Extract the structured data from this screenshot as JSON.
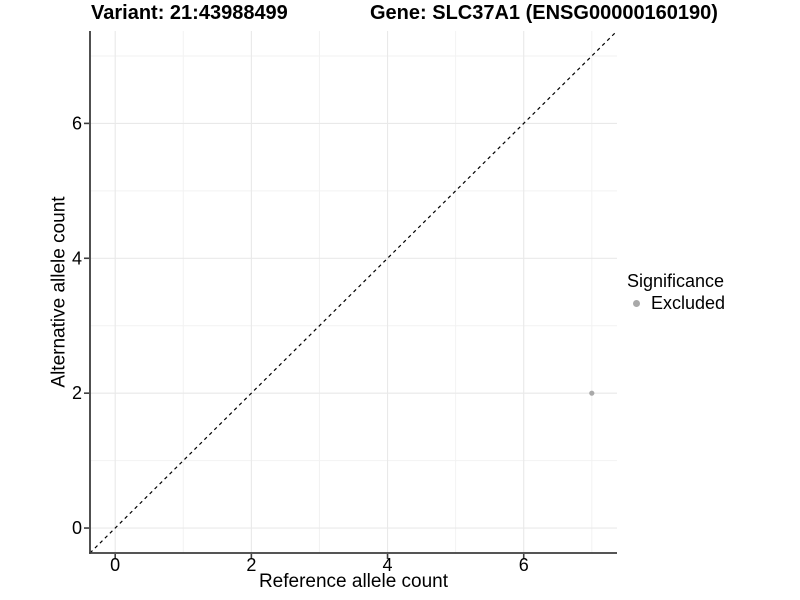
{
  "header": {
    "variant_title": "Variant: 21:43988499",
    "gene_title": "Gene: SLC37A1 (ENSG00000160190)"
  },
  "legend": {
    "title": "Significance",
    "items": [
      {
        "label": "Excluded",
        "color": "#a9a9a9",
        "marker": "circle"
      }
    ]
  },
  "colors": {
    "background": "#ffffff",
    "text": "#000000",
    "axis_line": "#3d3d3d",
    "grid_major": "#e9e9e9",
    "grid_minor": "#f2f2f2",
    "reference_line": "#000000",
    "point_excluded": "#a9a9a9"
  },
  "chart_data": {
    "type": "scatter",
    "title_left": "Variant: 21:43988499",
    "title_right": "Gene: SLC37A1 (ENSG00000160190)",
    "xlabel": "Reference allele count",
    "ylabel": "Alternative allele count",
    "xlim": [
      -0.37,
      7.37
    ],
    "ylim": [
      -0.37,
      7.37
    ],
    "x_major_ticks": [
      0,
      2,
      4,
      6
    ],
    "y_major_ticks": [
      0,
      2,
      4,
      6
    ],
    "x_minor_gridlines": [
      1,
      3,
      5,
      7
    ],
    "y_minor_gridlines": [
      1,
      3,
      5,
      7
    ],
    "grid": true,
    "legend_position": "right",
    "legend_title": "Significance",
    "reference_line": {
      "type": "identity",
      "style": "dashed",
      "color": "#000000",
      "x1": -0.37,
      "y1": -0.37,
      "x2": 7.37,
      "y2": 7.37
    },
    "series": [
      {
        "name": "Excluded",
        "color": "#a9a9a9",
        "points": [
          [
            7,
            2
          ]
        ]
      }
    ]
  }
}
